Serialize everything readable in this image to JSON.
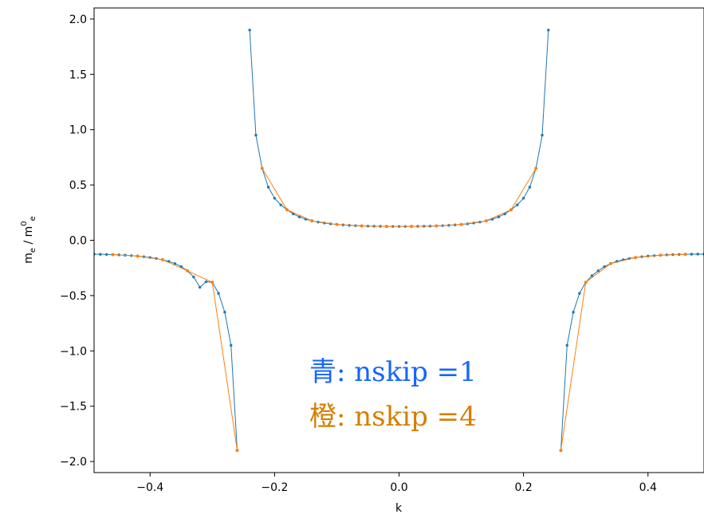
{
  "chart_data": {
    "type": "line",
    "xlabel": "k",
    "ylabel": {
      "base": "m",
      "sub1": "e",
      "sep": " / m",
      "sup2": "0",
      "sub2": "e"
    },
    "xlim": [
      -0.49,
      0.49
    ],
    "ylim": [
      -2.1,
      2.1
    ],
    "xticks": [
      {
        "v": -0.4,
        "label": "−0.4"
      },
      {
        "v": -0.2,
        "label": "−0.2"
      },
      {
        "v": 0.0,
        "label": "0.0"
      },
      {
        "v": 0.2,
        "label": "0.2"
      },
      {
        "v": 0.4,
        "label": "0.4"
      }
    ],
    "yticks": [
      {
        "v": 2.0,
        "label": "2.0"
      },
      {
        "v": 1.5,
        "label": "1.5"
      },
      {
        "v": 1.0,
        "label": "1.0"
      },
      {
        "v": 0.5,
        "label": "0.5"
      },
      {
        "v": 0.0,
        "label": "0.0"
      },
      {
        "v": -0.5,
        "label": "−0.5"
      },
      {
        "v": -1.0,
        "label": "−1.0"
      },
      {
        "v": -1.5,
        "label": "−1.5"
      },
      {
        "v": -2.0,
        "label": "−2.0"
      }
    ],
    "grid": false,
    "legend": "none",
    "annotations": [
      {
        "prefix": "青",
        "text": ": nskip =1",
        "color": "#1565ff"
      },
      {
        "prefix": "橙",
        "text": ": nskip =4",
        "color": "#d47f00"
      }
    ],
    "series": [
      {
        "color": "#1f77b4",
        "segments": [
          {
            "x": [
              -0.49,
              -0.48,
              -0.47,
              -0.46,
              -0.45,
              -0.44,
              -0.43,
              -0.42,
              -0.41,
              -0.4,
              -0.39,
              -0.38,
              -0.37,
              -0.36,
              -0.35,
              -0.34,
              -0.33,
              -0.32,
              -0.31,
              -0.3,
              -0.29,
              -0.28,
              -0.27,
              -0.26
            ],
            "y": [
              -0.126,
              -0.127,
              -0.128,
              -0.13,
              -0.132,
              -0.135,
              -0.139,
              -0.143,
              -0.149,
              -0.156,
              -0.165,
              -0.176,
              -0.191,
              -0.211,
              -0.238,
              -0.276,
              -0.332,
              -0.425,
              -0.375,
              -0.38,
              -0.48,
              -0.65,
              -0.95,
              -1.9
            ]
          },
          {
            "x": [
              -0.24,
              -0.23,
              -0.22,
              -0.21,
              -0.2,
              -0.19,
              -0.18,
              -0.17,
              -0.16,
              -0.15,
              -0.14,
              -0.13,
              -0.12,
              -0.11,
              -0.1,
              -0.09,
              -0.08,
              -0.07,
              -0.06,
              -0.05,
              -0.04,
              -0.03,
              -0.02,
              -0.01,
              0.0,
              0.01,
              0.02,
              0.03,
              0.04,
              0.05,
              0.06,
              0.07,
              0.08,
              0.09,
              0.1,
              0.11,
              0.12,
              0.13,
              0.14,
              0.15,
              0.16,
              0.17,
              0.18,
              0.19,
              0.2,
              0.21,
              0.22,
              0.23,
              0.24
            ],
            "y": [
              1.9,
              0.95,
              0.65,
              0.48,
              0.38,
              0.32,
              0.276,
              0.238,
              0.211,
              0.191,
              0.176,
              0.165,
              0.156,
              0.149,
              0.143,
              0.139,
              0.135,
              0.132,
              0.13,
              0.128,
              0.127,
              0.126,
              0.125,
              0.125,
              0.125,
              0.125,
              0.125,
              0.126,
              0.127,
              0.128,
              0.13,
              0.132,
              0.135,
              0.139,
              0.143,
              0.149,
              0.156,
              0.165,
              0.176,
              0.191,
              0.211,
              0.238,
              0.276,
              0.32,
              0.38,
              0.48,
              0.65,
              0.95,
              1.9
            ]
          },
          {
            "x": [
              0.26,
              0.27,
              0.28,
              0.29,
              0.3,
              0.31,
              0.32,
              0.33,
              0.34,
              0.35,
              0.36,
              0.37,
              0.38,
              0.39,
              0.4,
              0.41,
              0.42,
              0.43,
              0.44,
              0.45,
              0.46,
              0.47,
              0.48,
              0.49
            ],
            "y": [
              -1.9,
              -0.95,
              -0.65,
              -0.48,
              -0.38,
              -0.32,
              -0.276,
              -0.238,
              -0.211,
              -0.191,
              -0.176,
              -0.165,
              -0.156,
              -0.149,
              -0.143,
              -0.139,
              -0.135,
              -0.132,
              -0.13,
              -0.128,
              -0.127,
              -0.126,
              -0.125,
              -0.125
            ]
          }
        ]
      },
      {
        "color": "#ff7f0e",
        "segments": [
          {
            "x": [
              -0.46,
              -0.42,
              -0.38,
              -0.34,
              -0.3,
              -0.26
            ],
            "y": [
              -0.13,
              -0.143,
              -0.176,
              -0.276,
              -0.38,
              -1.9
            ]
          },
          {
            "x": [
              -0.22,
              -0.18,
              -0.14,
              -0.1,
              -0.06,
              -0.02,
              0.02,
              0.06,
              0.1,
              0.14,
              0.18,
              0.22
            ],
            "y": [
              0.65,
              0.276,
              0.176,
              0.143,
              0.13,
              0.125,
              0.125,
              0.13,
              0.143,
              0.176,
              0.276,
              0.65
            ]
          },
          {
            "x": [
              0.26,
              0.3,
              0.34,
              0.38,
              0.42,
              0.46
            ],
            "y": [
              -1.9,
              -0.38,
              -0.211,
              -0.156,
              -0.135,
              -0.127
            ]
          }
        ]
      }
    ]
  }
}
